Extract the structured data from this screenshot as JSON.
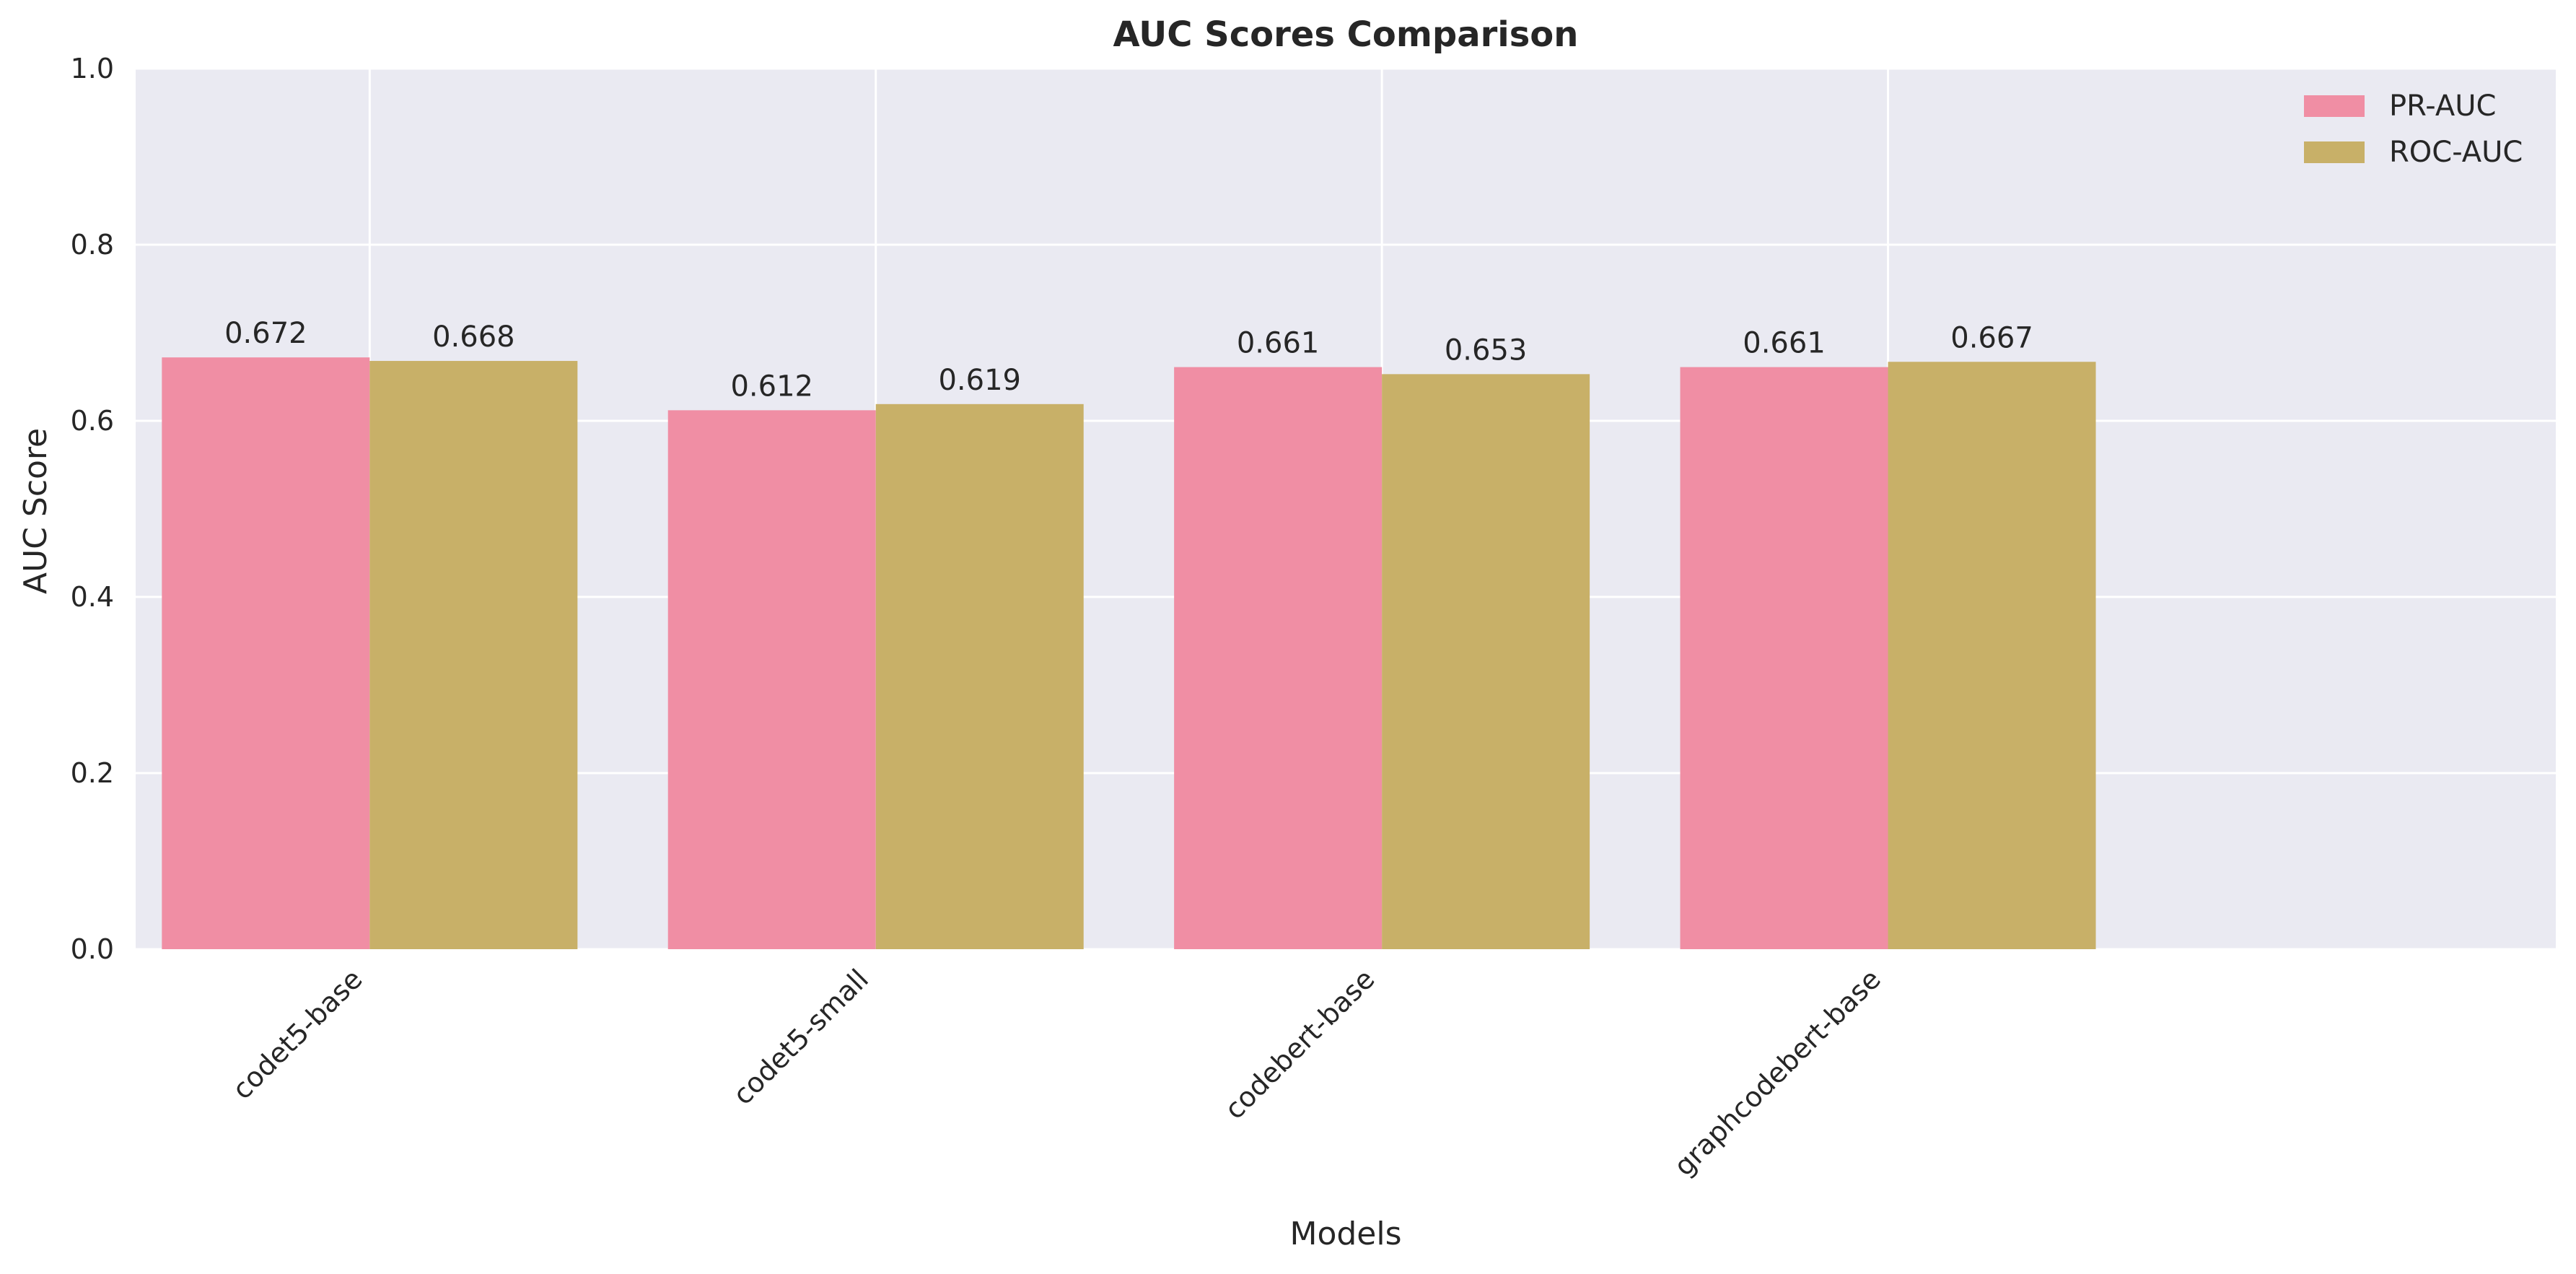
{
  "chart_data": {
    "type": "bar",
    "title": "AUC Scores Comparison",
    "xlabel": "Models",
    "ylabel": "AUC Score",
    "categories": [
      "codet5-base",
      "codet5-small",
      "codebert-base",
      "graphcodebert-base"
    ],
    "series": [
      {
        "name": "PR-AUC",
        "values": [
          0.672,
          0.612,
          0.661,
          0.661
        ],
        "color": "#f08ea4",
        "labels": [
          "0.672",
          "0.612",
          "0.661",
          "0.661"
        ]
      },
      {
        "name": "ROC-AUC",
        "values": [
          0.668,
          0.619,
          0.653,
          0.667
        ],
        "color": "#c8b068",
        "labels": [
          "0.668",
          "0.619",
          "0.653",
          "0.667"
        ]
      }
    ],
    "ylim": [
      0,
      1.0
    ],
    "yticks": [
      "0.0",
      "0.2",
      "0.4",
      "0.6",
      "0.8",
      "1.0"
    ],
    "ytick_values": [
      0,
      0.2,
      0.4,
      0.6,
      0.8,
      1.0
    ],
    "grid": true,
    "legend_position": "top-right",
    "plot_background": "#eaeaf2",
    "grid_color": "#ffffff"
  }
}
